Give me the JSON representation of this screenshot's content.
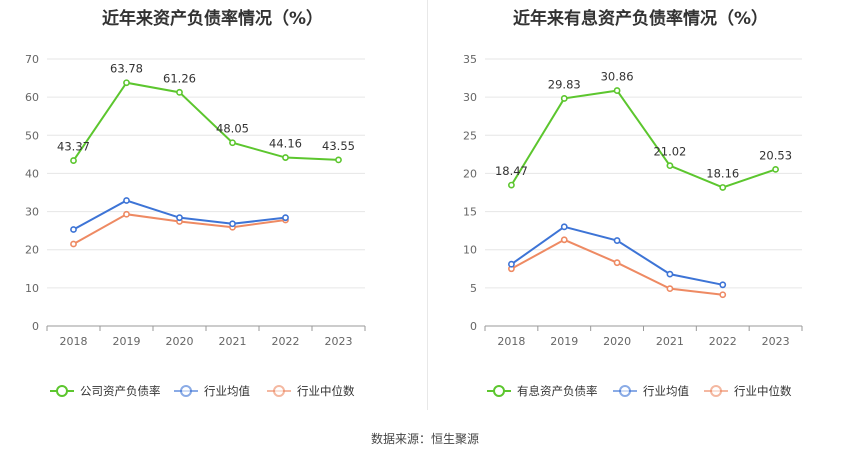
{
  "source": "数据来源：恒生聚源",
  "colors": {
    "main": "#5cc62e",
    "avg": "#3d74d6",
    "median": "#ee8a63"
  },
  "chart_data": [
    {
      "type": "line",
      "title": "近年来资产负债率情况（%）",
      "categories": [
        "2018",
        "2019",
        "2020",
        "2021",
        "2022",
        "2023"
      ],
      "ylim": [
        0,
        70
      ],
      "yticks": [
        0,
        10,
        20,
        30,
        40,
        50,
        60,
        70
      ],
      "grid": true,
      "legend": "bottom",
      "series": [
        {
          "name": "公司资产负债率",
          "values": [
            43.37,
            63.78,
            61.26,
            48.05,
            44.16,
            43.55
          ],
          "labels": [
            "43.37",
            "63.78",
            "61.26",
            "48.05",
            "44.16",
            "43.55"
          ]
        },
        {
          "name": "行业均值",
          "values": [
            25.3,
            32.9,
            28.4,
            26.8,
            28.4,
            null
          ]
        },
        {
          "name": "行业中位数",
          "values": [
            21.5,
            29.3,
            27.4,
            25.9,
            27.8,
            null
          ]
        }
      ]
    },
    {
      "type": "line",
      "title": "近年来有息资产负债率情况（%）",
      "categories": [
        "2018",
        "2019",
        "2020",
        "2021",
        "2022",
        "2023"
      ],
      "ylim": [
        0,
        35
      ],
      "yticks": [
        0,
        5,
        10,
        15,
        20,
        25,
        30,
        35
      ],
      "grid": true,
      "legend": "bottom",
      "series": [
        {
          "name": "有息资产负债率",
          "values": [
            18.47,
            29.83,
            30.86,
            21.02,
            18.16,
            20.53
          ],
          "labels": [
            "18.47",
            "29.83",
            "30.86",
            "21.02",
            "18.16",
            "20.53"
          ]
        },
        {
          "name": "行业均值",
          "values": [
            8.1,
            13.0,
            11.2,
            6.8,
            5.4,
            null
          ]
        },
        {
          "name": "行业中位数",
          "values": [
            7.5,
            11.3,
            8.3,
            4.9,
            4.1,
            null
          ]
        }
      ]
    }
  ]
}
